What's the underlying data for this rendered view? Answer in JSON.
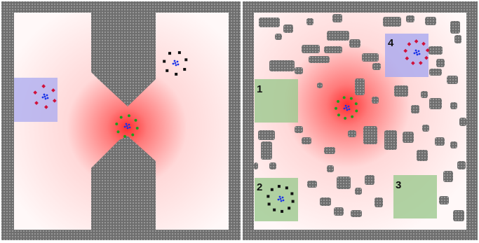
{
  "colors": {
    "wall": "#6e6e6e",
    "wall_dot": "#9a9a9a",
    "floor": "#fff6f6",
    "heat_core": "#ff3b3b",
    "zone_green": "#9cc98f",
    "zone_purple": "#a9a9f0",
    "robot_red": "#d0103a",
    "robot_green": "#1f9d1f",
    "robot_black": "#111111",
    "robot_blue": "#1a33e8"
  },
  "panels": [
    {
      "name": "corridor-environment",
      "zones": [
        {
          "kind": "start",
          "color": "zone_purple",
          "robot_color": "robot_red"
        }
      ],
      "swarms": [
        "robot_green",
        "robot_black"
      ]
    },
    {
      "name": "cluttered-environment",
      "zones": [
        {
          "label": "1",
          "color": "zone_green"
        },
        {
          "label": "2",
          "color": "zone_green",
          "robot_color": "robot_black"
        },
        {
          "label": "3",
          "color": "zone_green"
        },
        {
          "label": "4",
          "color": "zone_purple",
          "robot_color": "robot_red"
        }
      ],
      "swarms": [
        "robot_green"
      ]
    }
  ]
}
